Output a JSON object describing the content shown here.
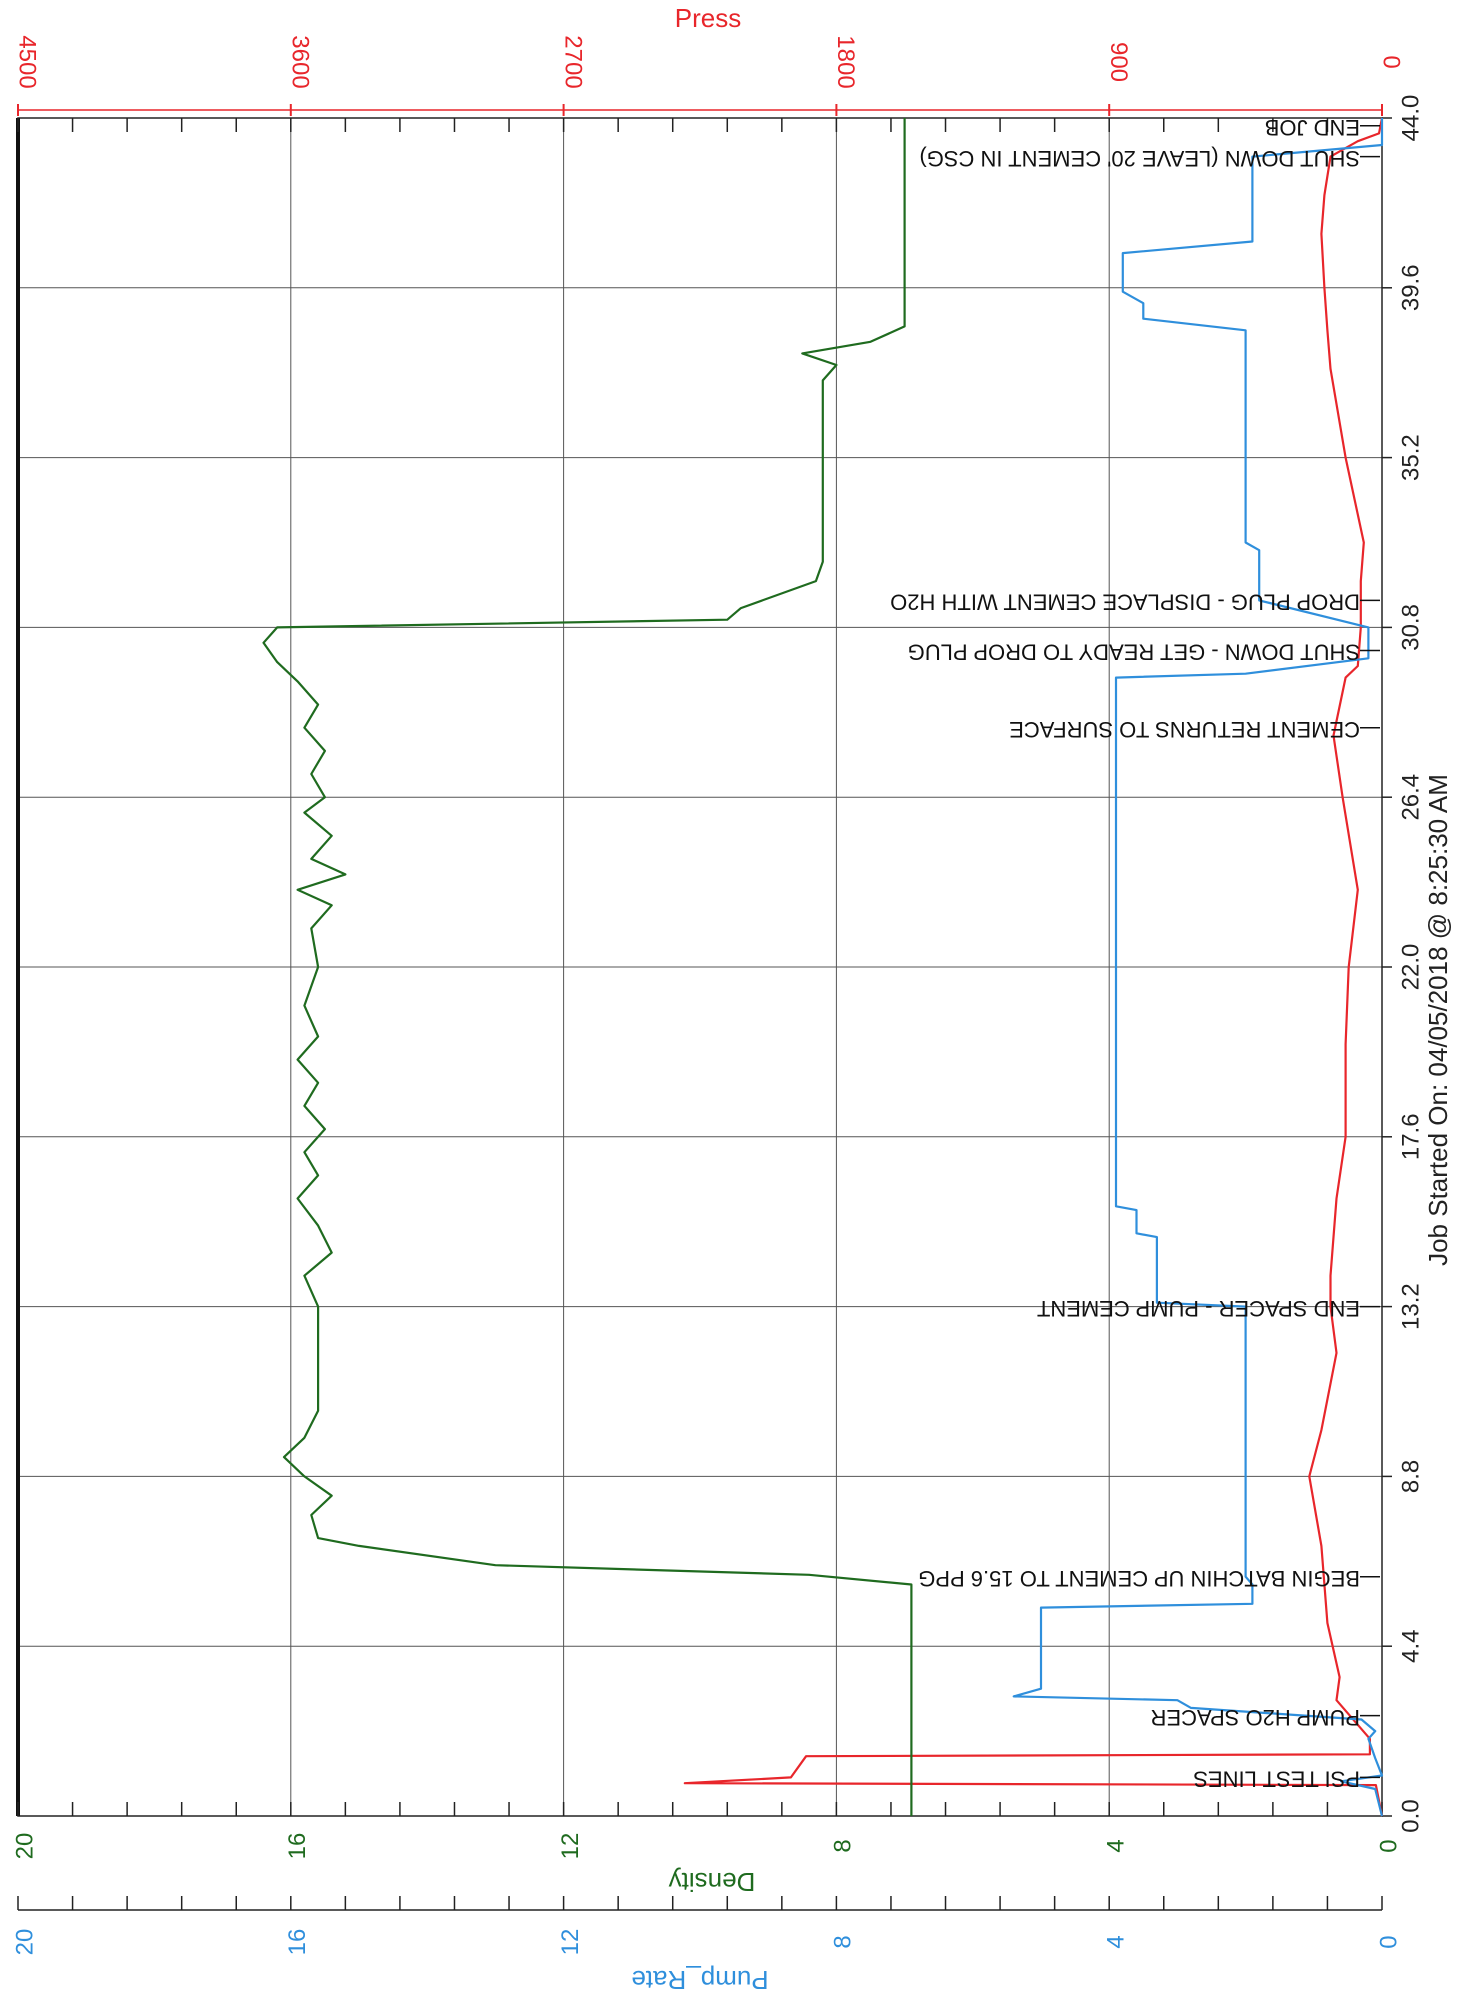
{
  "chart_data": {
    "type": "line",
    "orientation": "rotated-90-clockwise",
    "x_axis": {
      "label": "Job Started On: 04/05/2018 @ 8:25:30 AM",
      "ticks": [
        "0.0",
        "4.4",
        "8.8",
        "13.2",
        "17.6",
        "22.0",
        "26.4",
        "30.8",
        "35.2",
        "39.6",
        "44.0"
      ],
      "range": [
        0,
        44
      ]
    },
    "axes": [
      {
        "name": "Press",
        "color": "#e8262b",
        "range": [
          0,
          4500
        ],
        "ticks": [
          "0",
          "900",
          "1800",
          "2700",
          "3600",
          "4500"
        ]
      },
      {
        "name": "Density",
        "color": "#1f6b1f",
        "range": [
          0,
          20
        ],
        "ticks": [
          "0",
          "4",
          "8",
          "12",
          "16",
          "20"
        ]
      },
      {
        "name": "Pump_Rate",
        "color": "#2f8fdc",
        "range": [
          0,
          20
        ],
        "ticks": [
          "0",
          "4",
          "8",
          "12",
          "16",
          "20"
        ]
      }
    ],
    "grid": true,
    "series": [
      {
        "name": "Press",
        "color": "#e8262b",
        "points": [
          [
            0,
            0
          ],
          [
            0.8,
            20
          ],
          [
            0.85,
            2300
          ],
          [
            1.0,
            1950
          ],
          [
            1.55,
            1900
          ],
          [
            1.6,
            40
          ],
          [
            2.0,
            40
          ],
          [
            3.0,
            150
          ],
          [
            3.6,
            140
          ],
          [
            5.0,
            180
          ],
          [
            7.0,
            200
          ],
          [
            8.8,
            240
          ],
          [
            10.0,
            200
          ],
          [
            12.0,
            150
          ],
          [
            13.2,
            170
          ],
          [
            14.0,
            170
          ],
          [
            16.0,
            150
          ],
          [
            17.6,
            120
          ],
          [
            20.0,
            120
          ],
          [
            22.0,
            110
          ],
          [
            24.0,
            80
          ],
          [
            26.4,
            130
          ],
          [
            28.0,
            160
          ],
          [
            29.5,
            120
          ],
          [
            29.8,
            80
          ],
          [
            30.8,
            70
          ],
          [
            32.0,
            70
          ],
          [
            33.0,
            60
          ],
          [
            35.2,
            120
          ],
          [
            37.5,
            170
          ],
          [
            38.5,
            180
          ],
          [
            39.6,
            190
          ],
          [
            41.0,
            200
          ],
          [
            42.0,
            190
          ],
          [
            43.0,
            170
          ],
          [
            43.4,
            80
          ],
          [
            43.6,
            10
          ],
          [
            44.0,
            0
          ]
        ]
      },
      {
        "name": "Density",
        "color": "#1f6b1f",
        "points": [
          [
            0,
            6.9
          ],
          [
            1.5,
            6.9
          ],
          [
            6.0,
            6.9
          ],
          [
            6.25,
            8.4
          ],
          [
            6.5,
            13.0
          ],
          [
            7.0,
            15.0
          ],
          [
            7.2,
            15.6
          ],
          [
            7.8,
            15.7
          ],
          [
            8.3,
            15.4
          ],
          [
            8.8,
            15.8
          ],
          [
            9.3,
            16.1
          ],
          [
            9.8,
            15.8
          ],
          [
            10.5,
            15.6
          ],
          [
            13.2,
            15.6
          ],
          [
            14.0,
            15.8
          ],
          [
            14.6,
            15.4
          ],
          [
            15.3,
            15.6
          ],
          [
            16.0,
            15.9
          ],
          [
            16.6,
            15.6
          ],
          [
            17.2,
            15.8
          ],
          [
            17.8,
            15.5
          ],
          [
            18.4,
            15.8
          ],
          [
            19.0,
            15.6
          ],
          [
            19.6,
            15.9
          ],
          [
            20.2,
            15.6
          ],
          [
            21.0,
            15.8
          ],
          [
            22.0,
            15.6
          ],
          [
            23.0,
            15.7
          ],
          [
            23.6,
            15.4
          ],
          [
            24.0,
            15.9
          ],
          [
            24.4,
            15.2
          ],
          [
            24.8,
            15.7
          ],
          [
            25.4,
            15.4
          ],
          [
            26.0,
            15.8
          ],
          [
            26.4,
            15.5
          ],
          [
            27.0,
            15.7
          ],
          [
            27.6,
            15.5
          ],
          [
            28.2,
            15.8
          ],
          [
            28.8,
            15.6
          ],
          [
            29.4,
            15.9
          ],
          [
            29.9,
            16.2
          ],
          [
            30.4,
            16.4
          ],
          [
            30.8,
            16.2
          ],
          [
            31.0,
            9.6
          ],
          [
            31.3,
            9.4
          ],
          [
            32.0,
            8.3
          ],
          [
            32.5,
            8.2
          ],
          [
            35.2,
            8.2
          ],
          [
            37.2,
            8.2
          ],
          [
            37.6,
            8.0
          ],
          [
            37.9,
            8.5
          ],
          [
            38.2,
            7.5
          ],
          [
            38.6,
            7.0
          ],
          [
            41.0,
            7.0
          ],
          [
            44.0,
            7.0
          ]
        ]
      },
      {
        "name": "Pump_Rate",
        "color": "#2f8fdc",
        "points": [
          [
            0,
            0
          ],
          [
            0.7,
            0.1
          ],
          [
            0.9,
            0.6
          ],
          [
            1.05,
            0.0
          ],
          [
            1.5,
            0.1
          ],
          [
            2.0,
            0.2
          ],
          [
            2.2,
            0.1
          ],
          [
            2.5,
            0.3
          ],
          [
            2.8,
            2.8
          ],
          [
            3.0,
            3.0
          ],
          [
            3.1,
            5.4
          ],
          [
            3.3,
            5.0
          ],
          [
            4.4,
            5.0
          ],
          [
            5.4,
            5.0
          ],
          [
            5.5,
            1.9
          ],
          [
            6.0,
            1.9
          ],
          [
            6.2,
            2.0
          ],
          [
            13.2,
            2.0
          ],
          [
            13.3,
            3.3
          ],
          [
            15.0,
            3.3
          ],
          [
            15.1,
            3.6
          ],
          [
            15.7,
            3.6
          ],
          [
            15.8,
            3.9
          ],
          [
            29.5,
            3.9
          ],
          [
            29.6,
            2.0
          ],
          [
            30.0,
            0.2
          ],
          [
            30.8,
            0.2
          ],
          [
            31.5,
            1.8
          ],
          [
            32.8,
            1.8
          ],
          [
            33.0,
            2.0
          ],
          [
            36.0,
            2.0
          ],
          [
            38.5,
            2.0
          ],
          [
            38.8,
            3.5
          ],
          [
            39.2,
            3.5
          ],
          [
            39.5,
            3.8
          ],
          [
            40.5,
            3.8
          ],
          [
            40.8,
            1.9
          ],
          [
            43.0,
            1.9
          ],
          [
            43.3,
            0.0
          ],
          [
            44.0,
            0.0
          ]
        ]
      }
    ],
    "annotations": [
      {
        "x": 1.0,
        "text": "PSI TEST LINES"
      },
      {
        "x": 2.6,
        "text": "PUMP H2O SPACER"
      },
      {
        "x": 6.2,
        "text": "BEGIN BATCHIN UP CEMENT TO 15.6 PPG"
      },
      {
        "x": 13.2,
        "text": "END SPACER - PUMP CEMENT"
      },
      {
        "x": 28.2,
        "text": "CEMENT RETURNS TO SURFACE"
      },
      {
        "x": 30.2,
        "text": "SHUT DOWN - GET READY TO DROP PLUG"
      },
      {
        "x": 31.5,
        "text": "DROP PLUG - DISPLACE CEMENT WITH H2O"
      },
      {
        "x": 43.0,
        "text": "SHUT DOWN (LEAVE 20' CEMENT IN CSG)"
      },
      {
        "x": 43.8,
        "text": "END JOB"
      }
    ]
  }
}
